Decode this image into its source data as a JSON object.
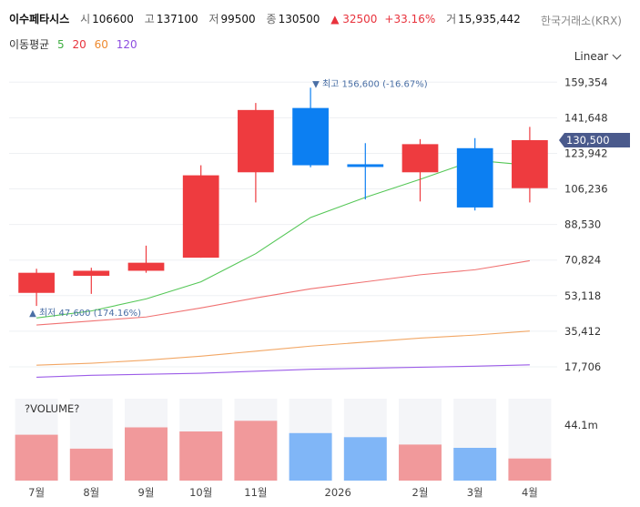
{
  "header": {
    "name": "이수페타시스",
    "open_label": "시",
    "open": "106600",
    "high_label": "고",
    "high": "137100",
    "low_label": "저",
    "low": "99500",
    "close_label": "종",
    "close": "130500",
    "change": "▲ 32500",
    "change_pct": "+33.16%",
    "volume_label": "거",
    "volume": "15,935,442",
    "exchange": "한국거래소(KRX)"
  },
  "ma_legend": {
    "label": "이동평균",
    "p5": "5",
    "p20": "20",
    "p60": "60",
    "p120": "120"
  },
  "scale": {
    "label": "Linear"
  },
  "colors": {
    "up": "#ee3b3f",
    "down": "#0c7ff2",
    "ma5": "#55c757",
    "ma20": "#f07272",
    "ma60": "#f2a765",
    "ma120": "#9c5de8",
    "vol_up": "#f1999b",
    "vol_down": "#80b6f7"
  },
  "chart_data": {
    "type": "candlestick",
    "categories": [
      "7월",
      "8월",
      "9월",
      "10월",
      "11월",
      "2026",
      "2월",
      "3월",
      "4월"
    ],
    "candles": [
      {
        "open": 54500,
        "close": 64500,
        "high": 66500,
        "low": 48000
      },
      {
        "open": 63000,
        "close": 65500,
        "high": 67000,
        "low": 54000
      },
      {
        "open": 65500,
        "close": 69500,
        "high": 78000,
        "low": 64500
      },
      {
        "open": 72000,
        "close": 113000,
        "high": 118000,
        "low": 72000
      },
      {
        "open": 114500,
        "close": 145500,
        "high": 149000,
        "low": 99500
      },
      {
        "open": 146500,
        "close": 118000,
        "high": 156600,
        "low": 117000
      },
      {
        "open": 118500,
        "close": 117500,
        "high": 129000,
        "low": 101000
      },
      {
        "open": 114500,
        "close": 128500,
        "high": 131000,
        "low": 100000
      },
      {
        "open": 126500,
        "close": 97000,
        "high": 131500,
        "low": 95500
      },
      {
        "open": 106600,
        "close": 130500,
        "high": 137100,
        "low": 99500
      }
    ],
    "ma": {
      "5": [
        42000,
        45500,
        51500,
        60000,
        74000,
        92000,
        102000,
        111000,
        120500,
        118000
      ],
      "20": [
        38500,
        40500,
        42500,
        47000,
        52000,
        56500,
        60000,
        63500,
        66000,
        70500
      ],
      "60": [
        18500,
        19500,
        21000,
        23000,
        25500,
        28000,
        30000,
        32000,
        33500,
        35500
      ],
      "120": [
        12500,
        13500,
        14000,
        14500,
        15500,
        16500,
        17000,
        17500,
        18000,
        18700
      ]
    },
    "volume": {
      "values": [
        0.56,
        0.39,
        0.65,
        0.6,
        0.73,
        0.58,
        0.53,
        0.44,
        0.4,
        0.27
      ],
      "max_label": "44.1m",
      "title": "?VOLUME?"
    },
    "yticks": [
      17706,
      35412,
      53118,
      70824,
      88530,
      106236,
      123942,
      141648,
      159354
    ],
    "ylim": [
      10000,
      164000
    ],
    "last_price": "130,500",
    "last_price_value": 130500,
    "annotations": {
      "high_text": "▼ 최고 156,600 (-16.67%)",
      "low_text": "▲ 최저 47,600 (174.16%)"
    }
  }
}
